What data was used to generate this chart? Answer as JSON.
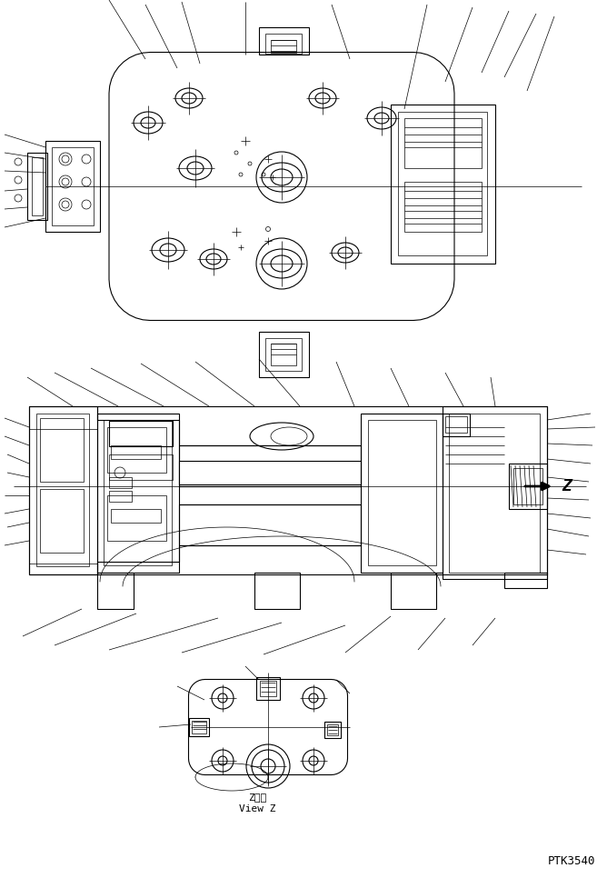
{
  "bg_color": "#ffffff",
  "line_color": "#000000",
  "lw": 0.8,
  "tlw": 0.5,
  "figsize": [
    6.68,
    9.66
  ],
  "dpi": 100,
  "label_z_jp": "Z　視",
  "label_z_en": "View Z",
  "label_ptk": "PTK3540"
}
